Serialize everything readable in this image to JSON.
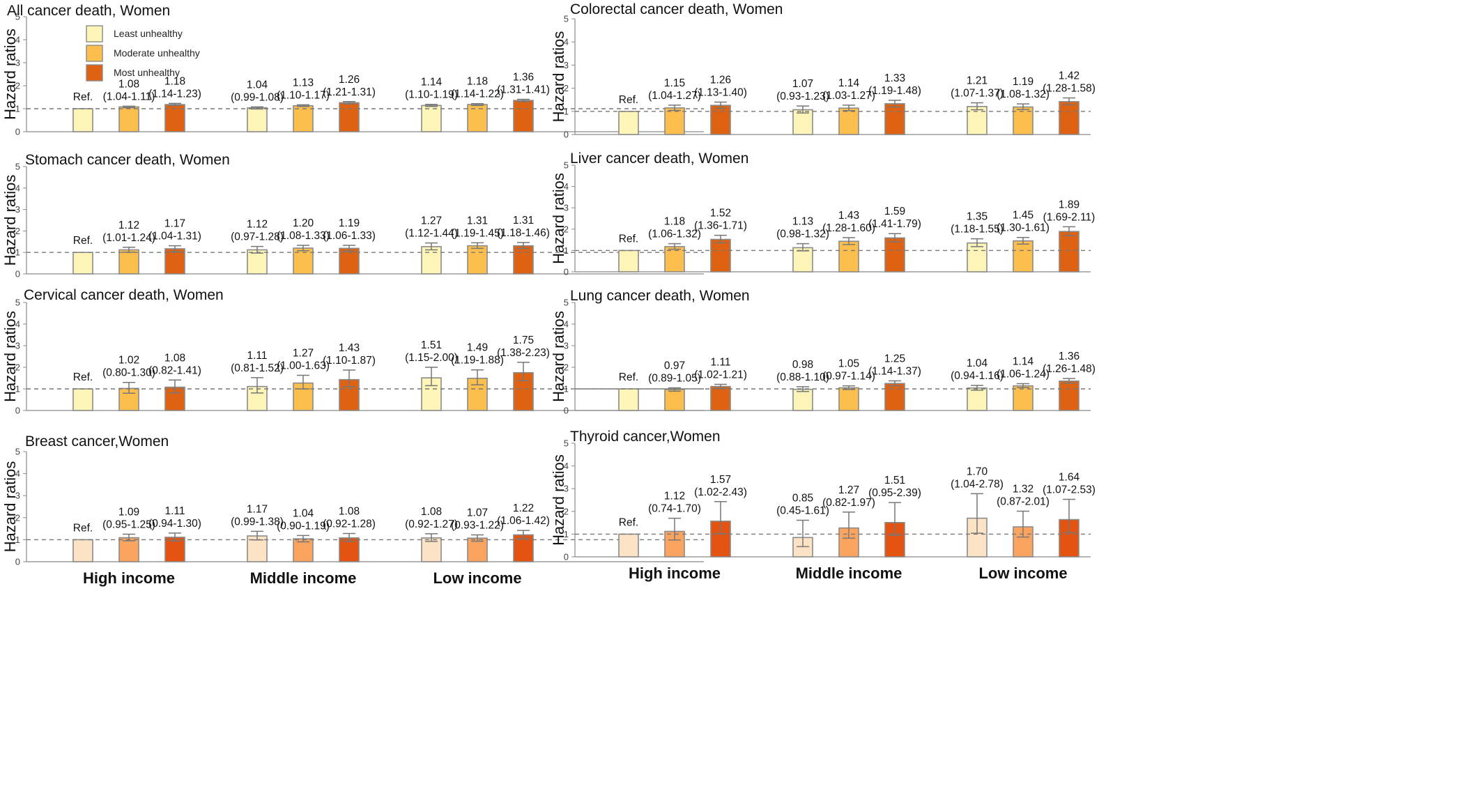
{
  "legend": {
    "items": [
      {
        "label": "Least unhealthy",
        "color": "#fdf5b8"
      },
      {
        "label": "Moderate unhealthy",
        "color": "#fcbf4d"
      },
      {
        "label": "Most unhealthy",
        "color": "#df6212"
      }
    ]
  },
  "axis_labels": {
    "y": "Hazard ratios"
  },
  "chart_data": [
    {
      "type": "bar",
      "title": "All cancer death, Women",
      "ylabel": "Hazard ratios",
      "ylim": [
        0,
        5
      ],
      "categories": [
        "High income",
        "Middle income",
        "Low income"
      ],
      "ref_line": 1,
      "grid": false,
      "series": [
        {
          "name": "Least unhealthy",
          "values": [
            1.0,
            1.04,
            1.14
          ],
          "lower": [
            null,
            0.99,
            1.1
          ],
          "upper": [
            null,
            1.08,
            1.19
          ],
          "labels": [
            "Ref.",
            "1.04\n(0.99-1.08)",
            "1.14\n(1.10-1.19)"
          ]
        },
        {
          "name": "Moderate unhealthy",
          "values": [
            1.08,
            1.13,
            1.18
          ],
          "lower": [
            1.04,
            1.1,
            1.14
          ],
          "upper": [
            1.11,
            1.17,
            1.22
          ],
          "labels": [
            "1.08\n(1.04-1.11)",
            "1.13\n(1.10-1.17)",
            "1.18\n(1.14-1.22)"
          ]
        },
        {
          "name": "Most unhealthy",
          "values": [
            1.18,
            1.26,
            1.36
          ],
          "lower": [
            1.14,
            1.21,
            1.31
          ],
          "upper": [
            1.23,
            1.31,
            1.41
          ],
          "labels": [
            "1.18\n(1.14-1.23)",
            "1.26\n(1.21-1.31)",
            "1.36\n(1.31-1.41)"
          ]
        }
      ]
    },
    {
      "type": "bar",
      "title": "Colorectal cancer death, Women",
      "ylabel": "Hazard ratios",
      "ylim": [
        0,
        5
      ],
      "categories": [
        "High income",
        "Middle income",
        "Low income"
      ],
      "ref_line": 1,
      "grid": false,
      "series": [
        {
          "name": "Least unhealthy",
          "values": [
            1.0,
            1.07,
            1.21
          ],
          "lower": [
            null,
            0.93,
            1.07
          ],
          "upper": [
            null,
            1.23,
            1.37
          ],
          "labels": [
            "Ref.",
            "1.07\n(0.93-1.23)",
            "1.21\n(1.07-1.37)"
          ]
        },
        {
          "name": "Moderate unhealthy",
          "values": [
            1.15,
            1.14,
            1.19
          ],
          "lower": [
            1.04,
            1.03,
            1.08
          ],
          "upper": [
            1.27,
            1.27,
            1.32
          ],
          "labels": [
            "1.15\n(1.04-1.27)",
            "1.14\n(1.03-1.27)",
            "1.19\n(1.08-1.32)"
          ]
        },
        {
          "name": "Most unhealthy",
          "values": [
            1.26,
            1.33,
            1.42
          ],
          "lower": [
            1.13,
            1.19,
            1.28
          ],
          "upper": [
            1.4,
            1.48,
            1.58
          ],
          "labels": [
            "1.26\n(1.13-1.40)",
            "1.33\n(1.19-1.48)",
            "1.42\n(1.28-1.58)"
          ]
        }
      ]
    },
    {
      "type": "bar",
      "title": "Stomach cancer death, Women",
      "ylabel": "Hazard ratios",
      "ylim": [
        0,
        5
      ],
      "categories": [
        "High income",
        "Middle income",
        "Low income"
      ],
      "ref_line": 1,
      "grid": false,
      "series": [
        {
          "name": "Least unhealthy",
          "values": [
            1.0,
            1.12,
            1.27
          ],
          "lower": [
            null,
            0.97,
            1.12
          ],
          "upper": [
            null,
            1.28,
            1.44
          ],
          "labels": [
            "Ref.",
            "1.12\n(0.97-1.28)",
            "1.27\n(1.12-1.44)"
          ]
        },
        {
          "name": "Moderate unhealthy",
          "values": [
            1.12,
            1.2,
            1.31
          ],
          "lower": [
            1.01,
            1.08,
            1.19
          ],
          "upper": [
            1.24,
            1.33,
            1.45
          ],
          "labels": [
            "1.12\n(1.01-1.24)",
            "1.20\n(1.08-1.33)",
            "1.31\n(1.19-1.45)"
          ]
        },
        {
          "name": "Most unhealthy",
          "values": [
            1.17,
            1.19,
            1.31
          ],
          "lower": [
            1.04,
            1.06,
            1.18
          ],
          "upper": [
            1.31,
            1.33,
            1.46
          ],
          "labels": [
            "1.17\n(1.04-1.31)",
            "1.19\n(1.06-1.33)",
            "1.31\n(1.18-1.46)"
          ]
        }
      ]
    },
    {
      "type": "bar",
      "title": "Liver cancer death, Women",
      "ylabel": "Hazard ratios",
      "ylim": [
        0,
        5
      ],
      "categories": [
        "High income",
        "Middle income",
        "Low income"
      ],
      "ref_line": 1,
      "grid": false,
      "series": [
        {
          "name": "Least unhealthy",
          "values": [
            1.0,
            1.13,
            1.35
          ],
          "lower": [
            null,
            0.98,
            1.18
          ],
          "upper": [
            null,
            1.32,
            1.55
          ],
          "labels": [
            "Ref.",
            "1.13\n(0.98-1.32)",
            "1.35\n(1.18-1.55)"
          ]
        },
        {
          "name": "Moderate unhealthy",
          "values": [
            1.18,
            1.43,
            1.45
          ],
          "lower": [
            1.06,
            1.28,
            1.3
          ],
          "upper": [
            1.32,
            1.6,
            1.61
          ],
          "labels": [
            "1.18\n(1.06-1.32)",
            "1.43\n(1.28-1.60)",
            "1.45\n(1.30-1.61)"
          ]
        },
        {
          "name": "Most unhealthy",
          "values": [
            1.52,
            1.59,
            1.89
          ],
          "lower": [
            1.36,
            1.41,
            1.69
          ],
          "upper": [
            1.71,
            1.79,
            2.11
          ],
          "labels": [
            "1.52\n(1.36-1.71)",
            "1.59\n(1.41-1.79)",
            "1.89\n(1.69-2.11)"
          ]
        }
      ]
    },
    {
      "type": "bar",
      "title": "Cervical cancer death, Women",
      "ylabel": "Hazard ratios",
      "ylim": [
        0,
        5
      ],
      "categories": [
        "High income",
        "Middle income",
        "Low income"
      ],
      "ref_line": 1,
      "grid": false,
      "series": [
        {
          "name": "Least unhealthy",
          "values": [
            1.0,
            1.11,
            1.51
          ],
          "lower": [
            null,
            0.81,
            1.15
          ],
          "upper": [
            null,
            1.52,
            2.0
          ],
          "labels": [
            "Ref.",
            "1.11\n(0.81-1.52)",
            "1.51\n(1.15-2.00)"
          ]
        },
        {
          "name": "Moderate unhealthy",
          "values": [
            1.02,
            1.27,
            1.49
          ],
          "lower": [
            0.8,
            1.0,
            1.19
          ],
          "upper": [
            1.3,
            1.63,
            1.88
          ],
          "labels": [
            "1.02\n(0.80-1.30)",
            "1.27\n(1.00-1.63)",
            "1.49\n(1.19-1.88)"
          ]
        },
        {
          "name": "Most unhealthy",
          "values": [
            1.08,
            1.43,
            1.75
          ],
          "lower": [
            0.82,
            1.1,
            1.38
          ],
          "upper": [
            1.41,
            1.87,
            2.23
          ],
          "labels": [
            "1.08\n(0.82-1.41)",
            "1.43\n(1.10-1.87)",
            "1.75\n(1.38-2.23)"
          ]
        }
      ]
    },
    {
      "type": "bar",
      "title": "Lung cancer death, Women",
      "ylabel": "Hazard ratios",
      "ylim": [
        0,
        5
      ],
      "categories": [
        "High income",
        "Middle income",
        "Low income"
      ],
      "ref_line": 1,
      "grid": false,
      "series": [
        {
          "name": "Least unhealthy",
          "values": [
            1.0,
            0.98,
            1.04
          ],
          "lower": [
            null,
            0.88,
            0.94
          ],
          "upper": [
            null,
            1.1,
            1.16
          ],
          "labels": [
            "Ref.",
            "0.98\n(0.88-1.10)",
            "1.04\n(0.94-1.16)"
          ]
        },
        {
          "name": "Moderate unhealthy",
          "values": [
            0.97,
            1.05,
            1.14
          ],
          "lower": [
            0.89,
            0.97,
            1.06
          ],
          "upper": [
            1.05,
            1.14,
            1.24
          ],
          "labels": [
            "0.97\n(0.89-1.05)",
            "1.05\n(0.97-1.14)",
            "1.14\n(1.06-1.24)"
          ]
        },
        {
          "name": "Most unhealthy",
          "values": [
            1.11,
            1.25,
            1.36
          ],
          "lower": [
            1.02,
            1.14,
            1.26
          ],
          "upper": [
            1.21,
            1.37,
            1.48
          ],
          "labels": [
            "1.11\n(1.02-1.21)",
            "1.25\n(1.14-1.37)",
            "1.36\n(1.26-1.48)"
          ]
        }
      ]
    },
    {
      "type": "bar",
      "title": "Breast cancer,Women",
      "ylabel": "Hazard ratios",
      "ylim": [
        0,
        5
      ],
      "categories": [
        "High income",
        "Middle income",
        "Low income"
      ],
      "ref_line": 1,
      "grid": false,
      "colors": [
        "#fde3c6",
        "#fba460",
        "#e4530f"
      ],
      "series": [
        {
          "name": "Least unhealthy",
          "values": [
            1.0,
            1.17,
            1.08
          ],
          "lower": [
            null,
            0.99,
            0.92
          ],
          "upper": [
            null,
            1.38,
            1.27
          ],
          "labels": [
            "Ref.",
            "1.17\n(0.99-1.38)",
            "1.08\n(0.92-1.27)"
          ]
        },
        {
          "name": "Moderate unhealthy",
          "values": [
            1.09,
            1.04,
            1.07
          ],
          "lower": [
            0.95,
            0.9,
            0.93
          ],
          "upper": [
            1.25,
            1.19,
            1.22
          ],
          "labels": [
            "1.09\n(0.95-1.25)",
            "1.04\n(0.90-1.19)",
            "1.07\n(0.93-1.22)"
          ]
        },
        {
          "name": "Most unhealthy",
          "values": [
            1.11,
            1.08,
            1.22
          ],
          "lower": [
            0.94,
            0.92,
            1.06
          ],
          "upper": [
            1.3,
            1.28,
            1.42
          ],
          "labels": [
            "1.11\n(0.94-1.30)",
            "1.08\n(0.92-1.28)",
            "1.22\n(1.06-1.42)"
          ]
        }
      ]
    },
    {
      "type": "bar",
      "title": "Thyroid cancer,Women",
      "ylabel": "Hazard ratios",
      "ylim": [
        0,
        5
      ],
      "categories": [
        "High income",
        "Middle income",
        "Low income"
      ],
      "ref_line": 1,
      "grid": false,
      "colors": [
        "#fde3c6",
        "#fba460",
        "#e4530f"
      ],
      "series": [
        {
          "name": "Least unhealthy",
          "values": [
            1.0,
            0.85,
            1.7
          ],
          "lower": [
            null,
            0.45,
            1.04
          ],
          "upper": [
            null,
            1.61,
            2.78
          ],
          "labels": [
            "Ref.",
            "0.85\n(0.45-1.61)",
            "1.70\n(1.04-2.78)"
          ]
        },
        {
          "name": "Moderate unhealthy",
          "values": [
            1.12,
            1.27,
            1.32
          ],
          "lower": [
            0.74,
            0.82,
            0.87
          ],
          "upper": [
            1.7,
            1.97,
            2.01
          ],
          "labels": [
            "1.12\n(0.74-1.70)",
            "1.27\n(0.82-1.97)",
            "1.32\n(0.87-2.01)"
          ]
        },
        {
          "name": "Most unhealthy",
          "values": [
            1.57,
            1.51,
            1.64
          ],
          "lower": [
            1.02,
            0.95,
            1.07
          ],
          "upper": [
            2.43,
            2.39,
            2.53
          ],
          "labels": [
            "1.57\n(1.02-2.43)",
            "1.51\n(0.95-2.39)",
            "1.64\n(1.07-2.53)"
          ]
        }
      ]
    }
  ]
}
